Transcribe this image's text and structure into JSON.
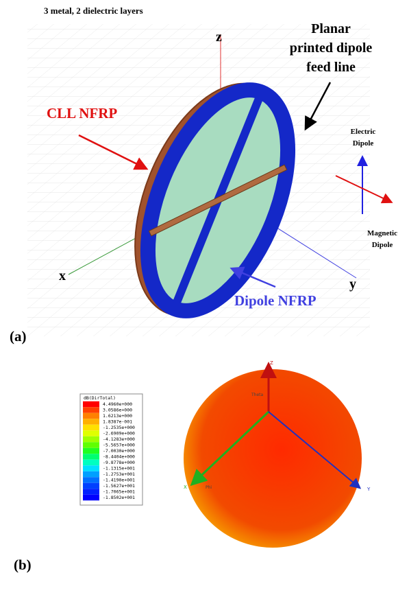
{
  "figure_a": {
    "caption": "3 metal, 2 dielectric layers",
    "panel": "(a)",
    "axis_z": "z",
    "axis_x": "x",
    "axis_y": "y",
    "feed_label": [
      "Planar",
      "printed dipole",
      "feed line"
    ],
    "cll_label": "CLL NFRP",
    "dipole_label": "Dipole NFRP",
    "electric_label": [
      "Electric",
      "Dipole"
    ],
    "magnetic_label": [
      "Magnetic",
      "Dipole"
    ]
  },
  "figure_b": {
    "panel": "(b)",
    "legend_title": "dB(DirTotal)",
    "legend_values": [
      "4.4960e+000",
      "3.0586e+000",
      "1.6213e+000",
      "1.8387e-001",
      "-1.2535e+000",
      "-2.6909e+000",
      "-4.1283e+000",
      "-5.5657e+000",
      "-7.0030e+000",
      "-8.4404e+000",
      "-9.8778e+000",
      "-1.1315e+001",
      "-1.2753e+001",
      "-1.4190e+001",
      "-1.5627e+001",
      "-1.7065e+001",
      "-1.8502e+001"
    ],
    "axis_z": "Z",
    "axis_x": "X",
    "axis_y": "Y",
    "theta": "Theta",
    "phi": "Phi"
  }
}
